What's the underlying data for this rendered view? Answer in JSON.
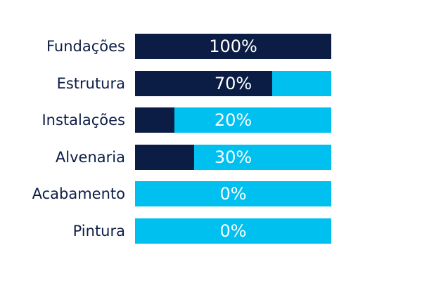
{
  "colors": {
    "complete": "#0c1d45",
    "remaining": "#00c0f0",
    "label_text": "#0c1d45",
    "value_text": "#ffffff"
  },
  "chart_data": {
    "type": "bar",
    "orientation": "horizontal",
    "stacked": true,
    "categories": [
      "Fundações",
      "Estrutura",
      "Instalações",
      "Alvenaria",
      "Acabamento",
      "Pintura"
    ],
    "values": [
      100,
      70,
      20,
      30,
      0,
      0
    ],
    "value_labels": [
      "100%",
      "70%",
      "20%",
      "30%",
      "0%",
      "0%"
    ],
    "xlim": [
      0,
      100
    ],
    "grid": false,
    "legend": "none"
  }
}
